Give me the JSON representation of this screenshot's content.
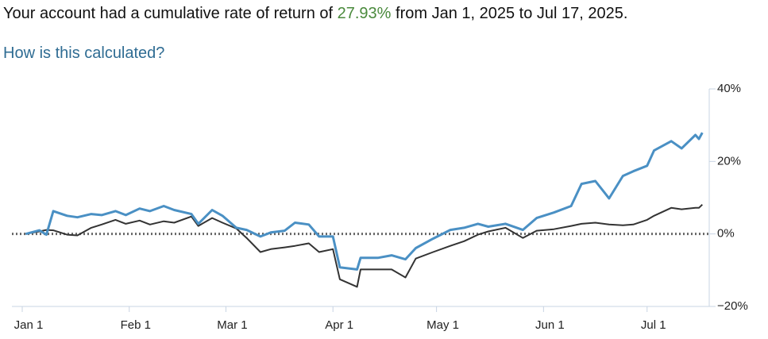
{
  "headline": {
    "before": "Your account had a cumulative rate of return of ",
    "value": "27.93%",
    "after": " from Jan 1, 2025 to Jul 17, 2025."
  },
  "link": "How is this calculated?",
  "chart_data": {
    "type": "line",
    "x": [
      "Jan 2",
      "Jan 6",
      "Jan 8",
      "Jan 10",
      "Jan 14",
      "Jan 17",
      "Jan 21",
      "Jan 24",
      "Jan 28",
      "Jan 31",
      "Feb 4",
      "Feb 7",
      "Feb 11",
      "Feb 14",
      "Feb 19",
      "Feb 21",
      "Feb 25",
      "Feb 28",
      "Mar 4",
      "Mar 7",
      "Mar 11",
      "Mar 14",
      "Mar 18",
      "Mar 21",
      "Mar 25",
      "Mar 28",
      "Apr 1",
      "Apr 3",
      "Apr 8",
      "Apr 9",
      "Apr 14",
      "Apr 18",
      "Apr 22",
      "Apr 25",
      "Apr 30",
      "May 5",
      "May 9",
      "May 13",
      "May 16",
      "May 21",
      "May 26",
      "May 30",
      "Jun 4",
      "Jun 9",
      "Jun 12",
      "Jun 16",
      "Jun 20",
      "Jun 24",
      "Jun 27",
      "Jul 1",
      "Jul 3",
      "Jul 8",
      "Jul 11",
      "Jul 15",
      "Jul 16",
      "Jul 17"
    ],
    "series": [
      {
        "color": "#4a90c4",
        "values": [
          0,
          1,
          -0.2,
          6.3,
          5,
          4.6,
          5.5,
          5.2,
          6.3,
          5.2,
          7,
          6.3,
          7.7,
          6.6,
          5.5,
          2.8,
          6.6,
          5,
          1.7,
          1.1,
          -0.7,
          0.4,
          0.9,
          3.1,
          2.6,
          -0.7,
          -0.7,
          -9.2,
          -9.8,
          -6.6,
          -6.6,
          -5.9,
          -7,
          -3.9,
          -1.3,
          1.1,
          1.7,
          2.8,
          2,
          2.8,
          1.1,
          4.4,
          5.9,
          7.7,
          13.8,
          14.6,
          9.8,
          16,
          17.3,
          18.8,
          23,
          25.6,
          23.6,
          27.3,
          26.2,
          27.93
        ]
      },
      {
        "color": "#333333",
        "values": [
          0,
          0.7,
          1.1,
          1,
          -0.2,
          -0.4,
          1.7,
          2.6,
          3.9,
          2.8,
          3.7,
          2.6,
          3.5,
          3.1,
          4.8,
          2.2,
          4.4,
          3.1,
          1.5,
          -1.1,
          -5,
          -4.2,
          -3.7,
          -3.3,
          -2.6,
          -5,
          -4.2,
          -12.5,
          -14.6,
          -9.8,
          -9.8,
          -9.8,
          -12,
          -6.8,
          -5,
          -3.3,
          -2,
          -0.2,
          0.7,
          1.7,
          -1.1,
          0.9,
          1.3,
          2.2,
          2.8,
          3.1,
          2.6,
          2.4,
          2.6,
          3.9,
          5,
          7.2,
          6.8,
          7.2,
          7.2,
          8.1
        ]
      }
    ],
    "xlim": [
      "Jan 1",
      "Jul 19"
    ],
    "xticks": [
      "Jan 1",
      "Feb 1",
      "Mar 1",
      "Apr 1",
      "May 1",
      "Jun 1",
      "Jul 1"
    ],
    "ylim": [
      -20,
      40
    ],
    "yticks": [
      {
        "value": -20,
        "label": "−20%"
      },
      {
        "value": 0,
        "label": "0%"
      },
      {
        "value": 20,
        "label": "20%"
      },
      {
        "value": 40,
        "label": "40%"
      }
    ]
  }
}
